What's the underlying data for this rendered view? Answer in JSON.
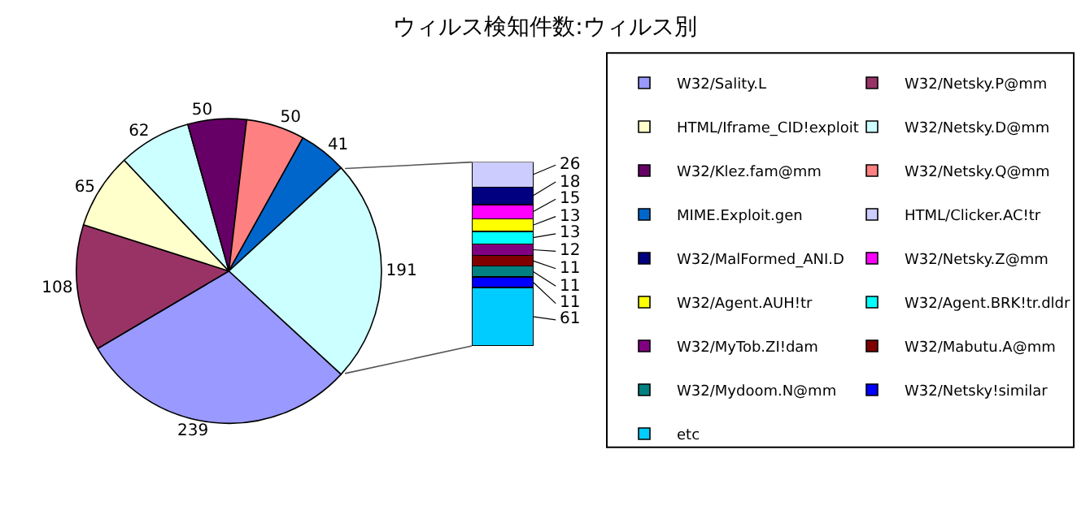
{
  "chart_data": [
    {
      "type": "pie",
      "title": "ウィルス検知件数:ウィルス別",
      "categories": [
        "W32/Sality.L",
        "W32/Netsky.P@mm",
        "HTML/Iframe_CID!exploit",
        "W32/Netsky.D@mm",
        "W32/Klez.fam@mm",
        "W32/Netsky.Q@mm",
        "MIME.Exploit.gen",
        null
      ],
      "values": [
        239,
        108,
        65,
        62,
        50,
        50,
        41,
        191
      ],
      "colors": [
        "#9999ff",
        "#993366",
        "#ffffcc",
        "#ccffff",
        "#660066",
        "#ff8080",
        "#0066cc",
        "#ccffff"
      ],
      "data_labels": true,
      "legend": "right"
    },
    {
      "type": "bar",
      "stacked": true,
      "categories": [
        null
      ],
      "data_labels": true,
      "legend": "right",
      "series": [
        {
          "name": "etc",
          "color": "#00ccff",
          "values": [
            61
          ]
        },
        {
          "name": "W32/Netsky!similar",
          "color": "#0000ff",
          "values": [
            11
          ]
        },
        {
          "name": "W32/Mydoom.N@mm",
          "color": "#008080",
          "values": [
            11
          ]
        },
        {
          "name": "W32/Mabutu.A@mm",
          "color": "#800000",
          "values": [
            11
          ]
        },
        {
          "name": "W32/MyTob.ZI!dam",
          "color": "#800080",
          "values": [
            12
          ]
        },
        {
          "name": "W32/Agent.BRK!tr.dldr",
          "color": "#00ffff",
          "values": [
            13
          ]
        },
        {
          "name": "W32/Agent.AUH!tr",
          "color": "#ffff00",
          "values": [
            13
          ]
        },
        {
          "name": "W32/Netsky.Z@mm",
          "color": "#ff00ff",
          "values": [
            15
          ]
        },
        {
          "name": "W32/MalFormed_ANI.D",
          "color": "#000080",
          "values": [
            18
          ]
        },
        {
          "name": "HTML/Clicker.AC!tr",
          "color": "#ccccff",
          "values": [
            26
          ]
        }
      ]
    }
  ]
}
